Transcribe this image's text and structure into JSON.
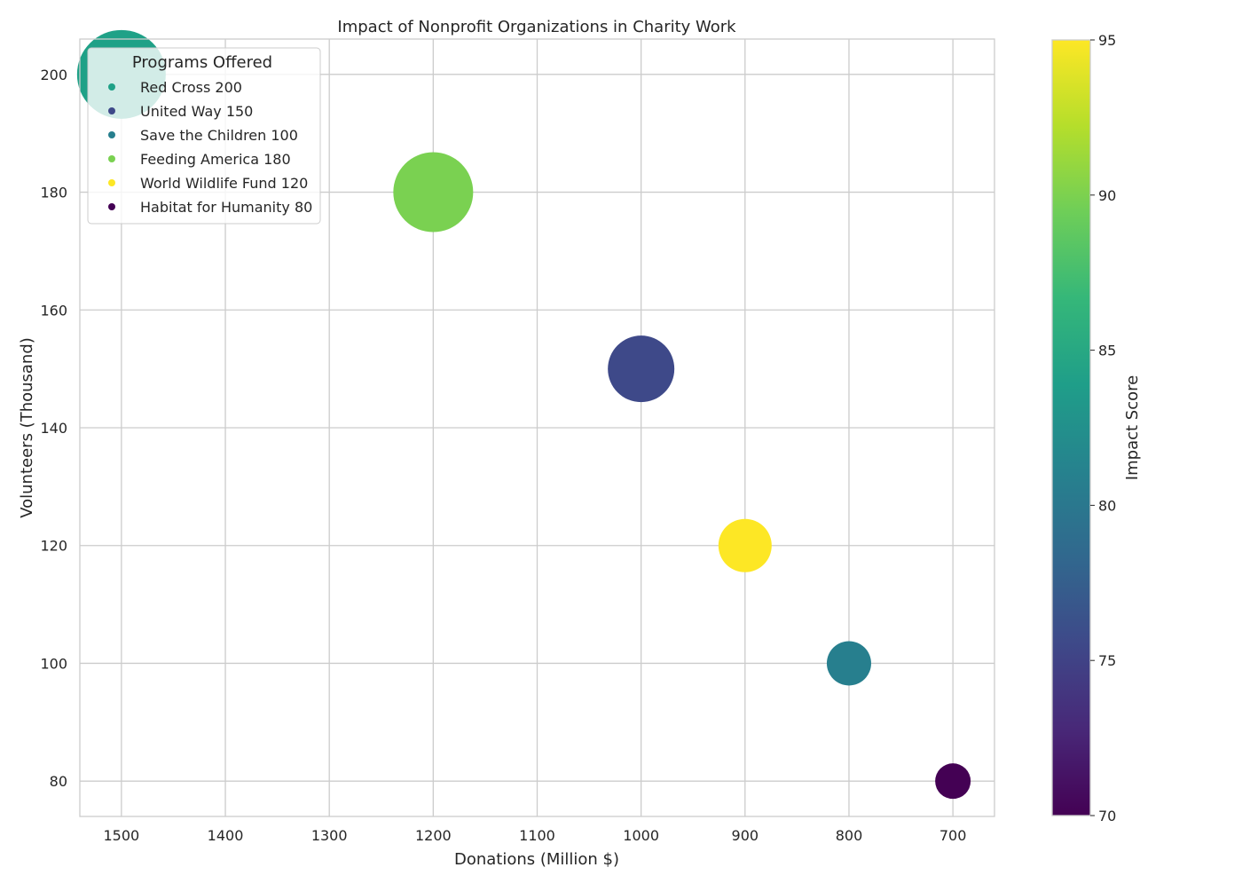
{
  "chart_data": {
    "type": "scatter",
    "title": "Impact of Nonprofit Organizations in Charity Work",
    "xlabel": "Donations (Million $)",
    "ylabel": "Volunteers (Thousand)",
    "x_inverted": true,
    "xlim": [
      1540,
      660
    ],
    "ylim": [
      74,
      206
    ],
    "x_ticks": [
      1500,
      1400,
      1300,
      1200,
      1100,
      1000,
      900,
      800,
      700
    ],
    "y_ticks": [
      80,
      100,
      120,
      140,
      160,
      180,
      200
    ],
    "grid": true,
    "legend": {
      "title": "Programs Offered",
      "placement": "top-left",
      "entries": [
        "Red Cross 200",
        "United Way 150",
        "Save the Children 100",
        "Feeding America 180",
        "World Wildlife Fund 120",
        "Habitat for Humanity 80"
      ]
    },
    "colorbar": {
      "label": "Impact Score",
      "colormap": "viridis",
      "range": [
        70,
        95
      ],
      "ticks": [
        70,
        75,
        80,
        85,
        90,
        95
      ]
    },
    "points": [
      {
        "organization": "Red Cross",
        "donations": 1500,
        "volunteers": 200,
        "programs": 200,
        "impact_score": 85,
        "color": "#1fa187"
      },
      {
        "organization": "United Way",
        "donations": 1000,
        "volunteers": 150,
        "programs": 150,
        "impact_score": 75,
        "color": "#3e4989"
      },
      {
        "organization": "Save the Children",
        "donations": 800,
        "volunteers": 100,
        "programs": 100,
        "impact_score": 80,
        "color": "#277f8e"
      },
      {
        "organization": "Feeding America",
        "donations": 1200,
        "volunteers": 180,
        "programs": 180,
        "impact_score": 90,
        "color": "#7ad151"
      },
      {
        "organization": "World Wildlife Fund",
        "donations": 900,
        "volunteers": 120,
        "programs": 120,
        "impact_score": 95,
        "color": "#fde725"
      },
      {
        "organization": "Habitat for Humanity",
        "donations": 700,
        "volunteers": 80,
        "programs": 80,
        "impact_score": 70,
        "color": "#440154"
      }
    ]
  }
}
